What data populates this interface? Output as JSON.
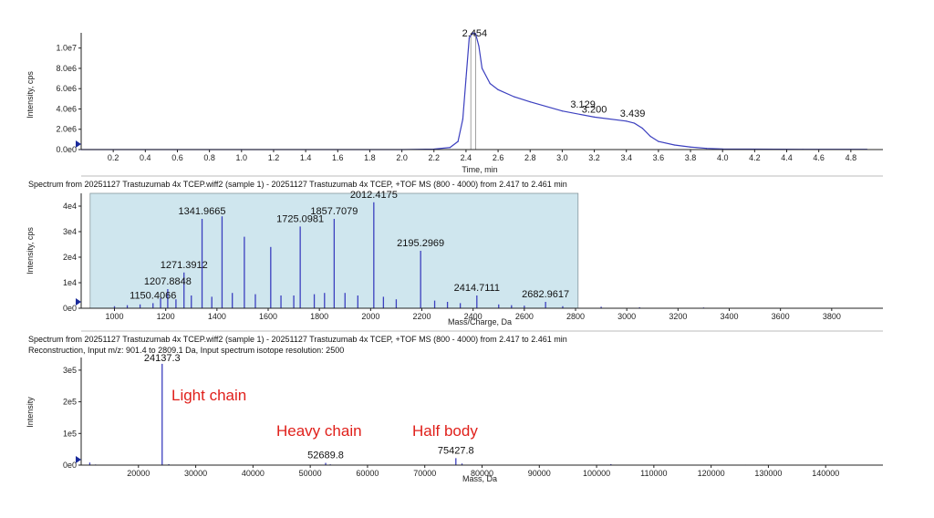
{
  "colors": {
    "trace": "#3b3fbf",
    "highlight": "#cfe6ee",
    "annotation": "#e0201b",
    "axis": "#222222"
  },
  "chart_data": [
    {
      "type": "line",
      "name": "tic",
      "xlabel": "Time, min",
      "ylabel": "Intensity, cps",
      "xlim": [
        0,
        5
      ],
      "ylim": [
        0,
        11500000
      ],
      "x_ticks": [
        "0.2",
        "0.4",
        "0.6",
        "0.8",
        "1.0",
        "1.2",
        "1.4",
        "1.6",
        "1.8",
        "2.0",
        "2.2",
        "2.4",
        "2.6",
        "2.8",
        "3.0",
        "3.2",
        "3.4",
        "3.6",
        "3.8",
        "4.0",
        "4.2",
        "4.4",
        "4.6",
        "4.8"
      ],
      "y_ticks": [
        "0.0e0",
        "2.0e6",
        "4.0e6",
        "6.0e6",
        "8.0e6",
        "1.0e7"
      ],
      "series": [
        {
          "x": [
            0.0,
            1.0,
            2.0,
            2.2,
            2.3,
            2.35,
            2.38,
            2.4,
            2.42,
            2.44,
            2.46,
            2.48,
            2.5,
            2.55,
            2.6,
            2.7,
            2.8,
            3.0,
            3.2,
            3.4,
            3.45,
            3.5,
            3.55,
            3.6,
            3.7,
            3.8,
            3.9,
            4.0,
            4.5,
            4.9
          ],
          "y": [
            0,
            0,
            0,
            50000,
            200000,
            800000,
            3000000,
            7000000,
            11000000,
            11500000,
            11400000,
            10200000,
            8000000,
            6500000,
            5900000,
            5200000,
            4700000,
            3800000,
            3200000,
            2800000,
            2600000,
            2100000,
            1300000,
            800000,
            450000,
            250000,
            120000,
            60000,
            30000,
            20000
          ]
        }
      ],
      "peak_labels": [
        {
          "x": 2.454,
          "y": 11500000,
          "text": "2.454"
        },
        {
          "x": 3.129,
          "y": 3700000,
          "text": "3.129"
        },
        {
          "x": 3.2,
          "y": 3200000,
          "text": "3.200"
        },
        {
          "x": 3.439,
          "y": 2800000,
          "text": "3.439"
        }
      ],
      "marker_lines": [
        2.43,
        2.46
      ]
    },
    {
      "type": "bar",
      "name": "spectrum",
      "header": "Spectrum from 20251127 Trastuzumab 4x TCEP.wiff2 (sample 1) - 20251127 Trastuzumab 4x TCEP, +TOF MS (800 - 4000) from 2.417 to 2.461 min",
      "xlabel": "Mass/Charge, Da",
      "ylabel": "Intensity, cps",
      "xlim": [
        870,
        4000
      ],
      "ylim": [
        0,
        45000
      ],
      "x_ticks": [
        "1000",
        "1200",
        "1400",
        "1600",
        "1800",
        "2000",
        "2200",
        "2400",
        "2600",
        "2800",
        "3000",
        "3200",
        "3400",
        "3600",
        "3800"
      ],
      "y_ticks": [
        "0e0",
        "1e4",
        "2e4",
        "3e4",
        "4e4"
      ],
      "highlight_range": [
        905,
        2810
      ],
      "x": [
        1150.4,
        1207.9,
        1271.4,
        1341.97,
        1420,
        1507,
        1610,
        1725.1,
        1857.7,
        2012.4,
        2195.3,
        2414.7,
        2682.96,
        1000,
        1050,
        1100,
        1180,
        1240,
        1300,
        1380,
        1460,
        1550,
        1650,
        1700,
        1780,
        1820,
        1900,
        1950,
        2050,
        2100,
        2250,
        2300,
        2350,
        2500,
        2550,
        2600,
        2750,
        2900,
        3050,
        3300
      ],
      "values": [
        2000,
        7500,
        14000,
        35000,
        36000,
        28000,
        24000,
        32000,
        35000,
        41500,
        22500,
        5000,
        2500,
        800,
        1200,
        1500,
        4000,
        3500,
        5000,
        4500,
        6000,
        5500,
        5000,
        5000,
        5500,
        6000,
        6000,
        5000,
        4500,
        3500,
        3000,
        2500,
        2000,
        1500,
        1200,
        1000,
        800,
        600,
        400,
        300
      ],
      "peak_labels": [
        {
          "x": 1150.4066,
          "y": 2000,
          "text": "1150.4066"
        },
        {
          "x": 1207.8848,
          "y": 7500,
          "text": "1207.8848"
        },
        {
          "x": 1271.3912,
          "y": 14000,
          "text": "1271.3912"
        },
        {
          "x": 1341.9665,
          "y": 35000,
          "text": "1341.9665"
        },
        {
          "x": 1725.0981,
          "y": 32000,
          "text": "1725.0981"
        },
        {
          "x": 1857.7079,
          "y": 35000,
          "text": "1857.7079"
        },
        {
          "x": 2012.4175,
          "y": 41500,
          "text": "2012.4175"
        },
        {
          "x": 2195.2969,
          "y": 22500,
          "text": "2195.2969"
        },
        {
          "x": 2414.7111,
          "y": 5000,
          "text": "2414.7111"
        },
        {
          "x": 2682.9617,
          "y": 2500,
          "text": "2682.9617"
        }
      ]
    },
    {
      "type": "bar",
      "name": "reconstruction",
      "header": "Spectrum from 20251127 Trastuzumab 4x TCEP.wiff2 (sample 1) - 20251127 Trastuzumab 4x TCEP, +TOF MS (800 - 4000) from 2.417 to 2.461 min",
      "subheader": "Reconstruction,  Input m/z: 901.4 to 2809.1 Da, Input spectrum isotope resolution: 2500",
      "xlabel": "Mass, Da",
      "ylabel": "Intensity",
      "xlim": [
        10000,
        150000
      ],
      "ylim": [
        0,
        340000
      ],
      "x_ticks": [
        "20000",
        "30000",
        "40000",
        "50000",
        "60000",
        "70000",
        "80000",
        "90000",
        "100000",
        "110000",
        "120000",
        "130000",
        "140000"
      ],
      "y_ticks": [
        "0e0",
        "1e5",
        "2e5",
        "3e5"
      ],
      "x": [
        24137.3,
        52689.8,
        75427.8,
        11500,
        12500,
        25300,
        48700,
        53500,
        76500,
        102500,
        126000
      ],
      "values": [
        320000,
        7000,
        22000,
        8000,
        2000,
        3000,
        1200,
        2500,
        5000,
        3000,
        1500
      ],
      "peak_labels": [
        {
          "x": 24137.3,
          "y": 320000,
          "text": "24137.3"
        },
        {
          "x": 52689.8,
          "y": 7000,
          "text": "52689.8"
        },
        {
          "x": 75427.8,
          "y": 22000,
          "text": "75427.8"
        }
      ],
      "annotations": [
        "Light chain",
        "Heavy chain",
        "Half body"
      ]
    }
  ]
}
